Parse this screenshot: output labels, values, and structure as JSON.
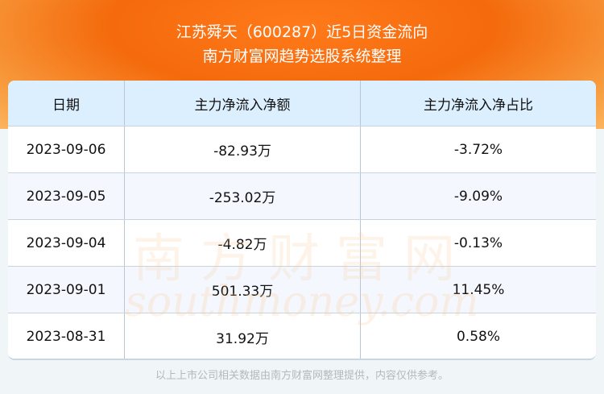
{
  "title": "江苏舜天（600287）近5日资金流向",
  "subtitle": "南方财富网趋势选股系统整理",
  "headers": [
    "日期",
    "主力净流入净额",
    "主力净流入净占比"
  ],
  "rows": [
    [
      "2023-09-06",
      "-82.93万",
      "-3.72%"
    ],
    [
      "2023-09-05",
      "-253.02万",
      "-9.09%"
    ],
    [
      "2023-09-04",
      "-4.82万",
      "-0.13%"
    ],
    [
      "2023-09-01",
      "501.33万",
      "11.45%"
    ],
    [
      "2023-08-31",
      "31.92万",
      "0.58%"
    ]
  ],
  "watermark": {
    "cn": "南方财富网",
    "en": "southmoney.com"
  },
  "footer": "以上上市公司相关数据由南方财富网整理提供，内容仅供参考。",
  "colors": {
    "banner": "#f46a0c",
    "header_bg": "#dcefff",
    "alt_row": "#f4f8fe"
  }
}
